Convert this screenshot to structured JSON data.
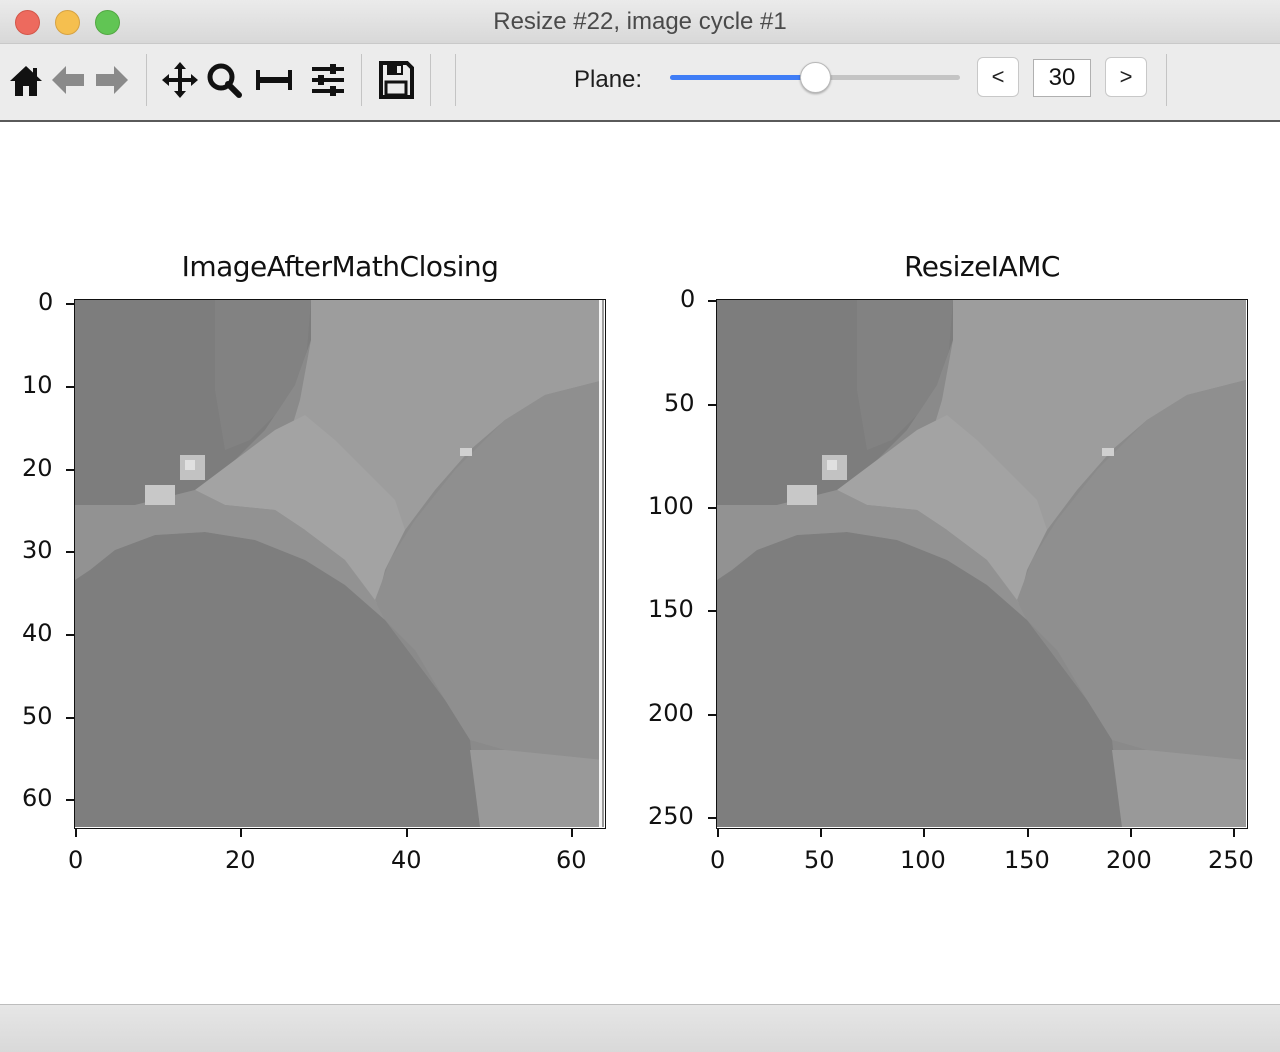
{
  "window": {
    "title": "Resize #22, image cycle #1"
  },
  "toolbar": {
    "tools": [
      {
        "name": "home-icon"
      },
      {
        "name": "back-arrow-icon"
      },
      {
        "name": "forward-arrow-icon"
      },
      {
        "name": "pan-icon"
      },
      {
        "name": "zoom-icon"
      },
      {
        "name": "subplots-icon"
      },
      {
        "name": "configure-icon"
      },
      {
        "name": "save-icon"
      }
    ],
    "plane_label": "Plane:",
    "plane_value": "30",
    "plane_slider_fraction": 0.5,
    "prev_label": "<",
    "next_label": ">"
  },
  "chart_data": [
    {
      "type": "heatmap",
      "title": "ImageAfterMathClosing",
      "x_ticks": [
        "0",
        "20",
        "40",
        "60"
      ],
      "y_ticks": [
        "0",
        "10",
        "20",
        "30",
        "40",
        "50",
        "60"
      ],
      "xlim": [
        -0.5,
        63.5
      ],
      "ylim": [
        63.5,
        -0.5
      ],
      "colormap": "gray"
    },
    {
      "type": "heatmap",
      "title": "ResizeIAMC",
      "x_ticks": [
        "0",
        "50",
        "100",
        "150",
        "200",
        "250"
      ],
      "y_ticks": [
        "0",
        "50",
        "100",
        "150",
        "200",
        "250"
      ],
      "xlim": [
        -0.5,
        255.5
      ],
      "ylim": [
        255.5,
        -0.5
      ],
      "colormap": "gray"
    }
  ]
}
